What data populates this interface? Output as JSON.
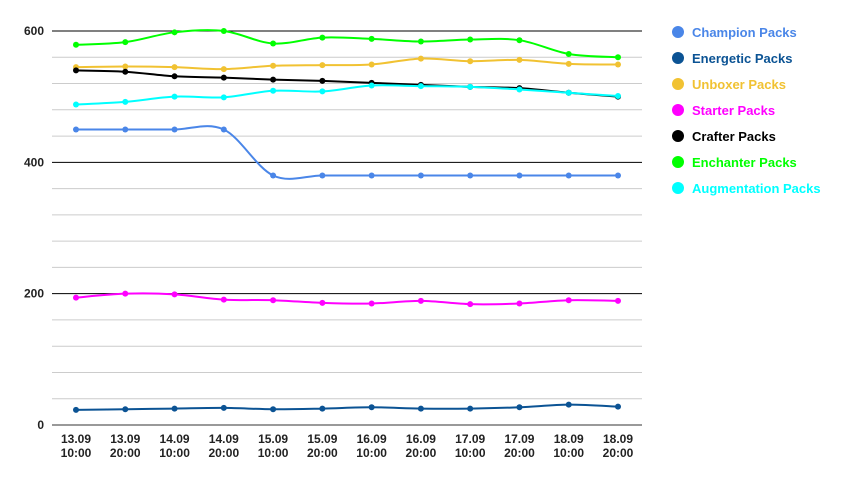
{
  "chart_data": {
    "type": "line",
    "title": "",
    "xlabel": "",
    "ylabel": "",
    "ylim": [
      0,
      600
    ],
    "y_ticks": [
      0,
      200,
      400,
      600
    ],
    "grid": true,
    "legend_position": "right",
    "categories": [
      [
        "13.09",
        "10:00"
      ],
      [
        "13.09",
        "20:00"
      ],
      [
        "14.09",
        "10:00"
      ],
      [
        "14.09",
        "20:00"
      ],
      [
        "15.09",
        "10:00"
      ],
      [
        "15.09",
        "20:00"
      ],
      [
        "16.09",
        "10:00"
      ],
      [
        "16.09",
        "20:00"
      ],
      [
        "17.09",
        "10:00"
      ],
      [
        "17.09",
        "20:00"
      ],
      [
        "18.09",
        "10:00"
      ],
      [
        "18.09",
        "20:00"
      ]
    ],
    "series": [
      {
        "name": "Champion Packs",
        "color": "#4a86e8",
        "values": [
          450,
          450,
          450,
          450,
          380,
          380,
          380,
          380,
          380,
          380,
          380,
          380
        ]
      },
      {
        "name": "Energetic Packs",
        "color": "#0b5394",
        "values": [
          23,
          24,
          25,
          26,
          24,
          25,
          27,
          25,
          25,
          27,
          31,
          28
        ]
      },
      {
        "name": "Unboxer Packs",
        "color": "#f1c232",
        "values": [
          545,
          546,
          545,
          542,
          547,
          548,
          549,
          558,
          554,
          556,
          550,
          549
        ]
      },
      {
        "name": "Starter Packs",
        "color": "#ff00ff",
        "values": [
          194,
          200,
          199,
          191,
          190,
          186,
          185,
          189,
          184,
          185,
          190,
          189
        ]
      },
      {
        "name": "Crafter Packs",
        "color": "#000000",
        "values": [
          540,
          538,
          531,
          529,
          526,
          524,
          521,
          518,
          515,
          513,
          506,
          500
        ]
      },
      {
        "name": "Enchanter Packs",
        "color": "#00ff00",
        "values": [
          579,
          583,
          598,
          600,
          581,
          590,
          588,
          584,
          587,
          586,
          565,
          560
        ]
      },
      {
        "name": "Augmentation Packs",
        "color": "#00ffff",
        "values": [
          488,
          492,
          500,
          499,
          509,
          508,
          517,
          516,
          515,
          511,
          506,
          501
        ]
      }
    ]
  }
}
